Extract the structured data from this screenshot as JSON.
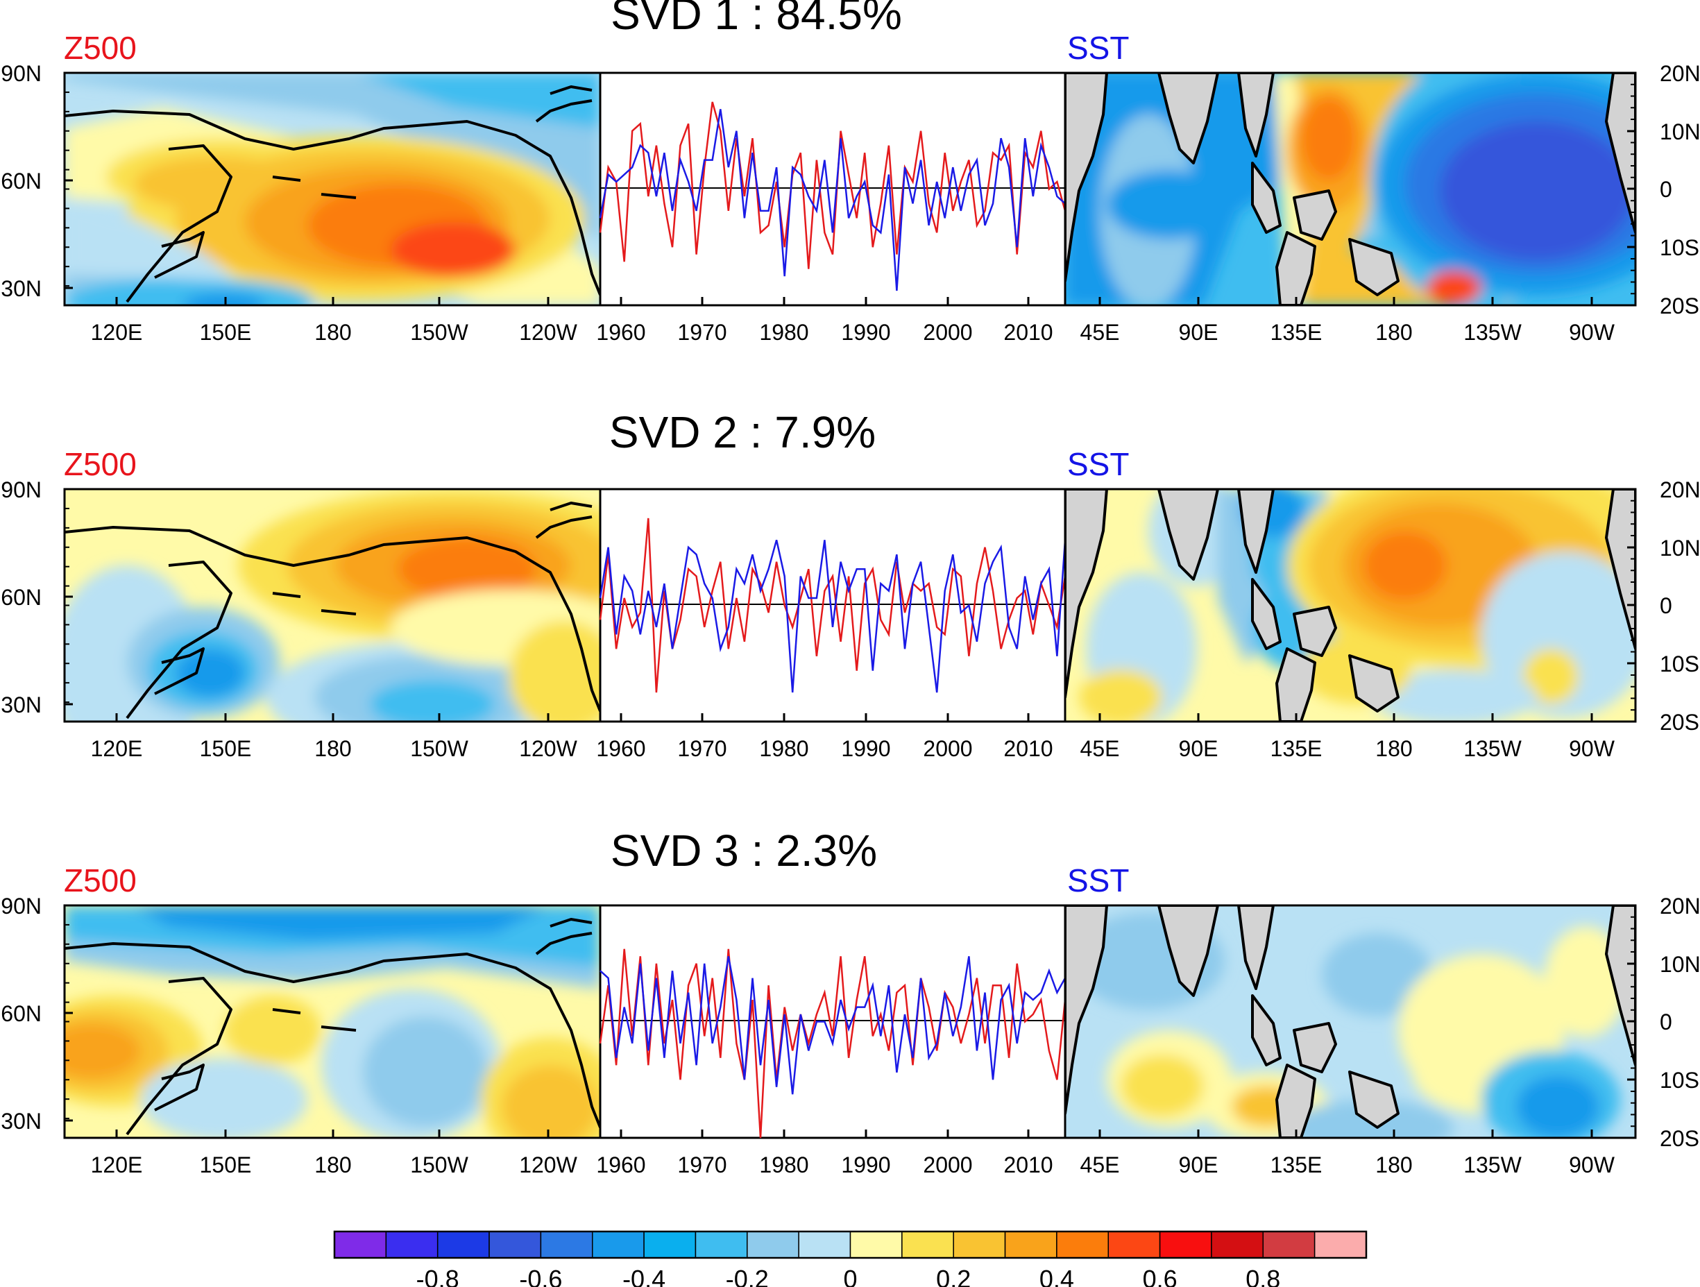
{
  "colors": {
    "z500_label": "#e8141c",
    "sst_label": "#1414e6",
    "z500_series": "#e41a1c",
    "sst_series": "#1a1ae6",
    "land": "#d3d3d3",
    "coast": "#000000",
    "colorbar": [
      "#7f2be8",
      "#3a2ef0",
      "#1c3ae6",
      "#3457db",
      "#2c79e4",
      "#199aeb",
      "#0aafee",
      "#3fbdf0",
      "#8fcbec",
      "#b9e1f4",
      "#fffaa8",
      "#fae150",
      "#f9c332",
      "#f9a31b",
      "#fb7d0c",
      "#fc4714",
      "#f80f0f",
      "#d40f12",
      "#d23c41",
      "#fbacac"
    ]
  },
  "panels": [
    {
      "id": "svd1",
      "title": "SVD 1 : 84.5%",
      "left_label": "Z500",
      "right_label": "SST",
      "left_lat_labels": [
        "90N",
        "60N",
        "30N"
      ],
      "left_lon_labels": [
        "120E",
        "150E",
        "180",
        "150W",
        "120W"
      ],
      "time_labels": [
        "1960",
        "1970",
        "1980",
        "1990",
        "2000",
        "2010"
      ],
      "right_lon_labels": [
        "45E",
        "90E",
        "135E",
        "180",
        "135W",
        "90W"
      ],
      "right_lat_labels": [
        "20N",
        "10N",
        "0",
        "10S",
        "20S"
      ]
    },
    {
      "id": "svd2",
      "title": "SVD 2 : 7.9%",
      "left_label": "Z500",
      "right_label": "SST",
      "left_lat_labels": [
        "90N",
        "60N",
        "30N"
      ],
      "left_lon_labels": [
        "120E",
        "150E",
        "180",
        "150W",
        "120W"
      ],
      "time_labels": [
        "1960",
        "1970",
        "1980",
        "1990",
        "2000",
        "2010"
      ],
      "right_lon_labels": [
        "45E",
        "90E",
        "135E",
        "180",
        "135W",
        "90W"
      ],
      "right_lat_labels": [
        "20N",
        "10N",
        "0",
        "10S",
        "20S"
      ]
    },
    {
      "id": "svd3",
      "title": "SVD 3 : 2.3%",
      "left_label": "Z500",
      "right_label": "SST",
      "left_lat_labels": [
        "90N",
        "60N",
        "30N"
      ],
      "left_lon_labels": [
        "120E",
        "150E",
        "180",
        "150W",
        "120W"
      ],
      "time_labels": [
        "1960",
        "1970",
        "1980",
        "1990",
        "2000",
        "2010"
      ],
      "right_lon_labels": [
        "45E",
        "90E",
        "135E",
        "180",
        "135W",
        "90W"
      ],
      "right_lat_labels": [
        "20N",
        "10N",
        "0",
        "10S",
        "20S"
      ]
    }
  ],
  "colorbar_labels": [
    "-0.8",
    "-0.6",
    "-0.4",
    "-0.2",
    "0",
    "0.2",
    "0.4",
    "0.6",
    "0.8"
  ],
  "chart_data": [
    {
      "type": "line",
      "panel": "SVD 1 : 84.5%",
      "x": [
        1958,
        1959,
        1960,
        1961,
        1962,
        1963,
        1964,
        1965,
        1966,
        1967,
        1968,
        1969,
        1970,
        1971,
        1972,
        1973,
        1974,
        1975,
        1976,
        1977,
        1978,
        1979,
        1980,
        1981,
        1982,
        1983,
        1984,
        1985,
        1986,
        1987,
        1988,
        1989,
        1990,
        1991,
        1992,
        1993,
        1994,
        1995,
        1996,
        1997,
        1998,
        1999,
        2000,
        2001,
        2002,
        2003,
        2004,
        2005,
        2006,
        2007,
        2008,
        2009,
        2010,
        2011,
        2012,
        2013,
        2014,
        2015,
        2016
      ],
      "xlim": [
        1958,
        2016
      ],
      "ylim": [
        -1.6,
        1.6
      ],
      "series": [
        {
          "values": [
            -0.6,
            0.3,
            0.1,
            -1.0,
            0.8,
            0.9,
            -0.1,
            0.6,
            -0.2,
            -0.8,
            0.6,
            0.9,
            -0.9,
            0.3,
            1.2,
            0.8,
            -0.3,
            0.7,
            -0.1,
            0.7,
            -0.6,
            -0.5,
            0.1,
            -0.8,
            0.2,
            0.5,
            -1.1,
            0.4,
            -0.6,
            -0.9,
            0.8,
            0.2,
            -0.4,
            0.5,
            -0.8,
            -0.2,
            0.6,
            -0.9,
            0.3,
            0.1,
            0.8,
            -0.2,
            -0.6,
            0.5,
            -0.3,
            0.1,
            0.4,
            -0.5,
            -0.3,
            0.5,
            0.4,
            0.6,
            -0.9,
            0.5,
            0.3,
            0.8,
            0.0,
            0.1,
            -0.3
          ]
        },
        {
          "values": [
            -0.4,
            0.2,
            0.1,
            0.2,
            0.3,
            0.6,
            0.5,
            -0.1,
            0.5,
            -0.3,
            0.4,
            0.1,
            -0.3,
            0.4,
            0.4,
            1.1,
            0.3,
            0.8,
            -0.4,
            0.5,
            -0.3,
            -0.3,
            0.3,
            -1.2,
            0.3,
            0.2,
            -0.1,
            -0.3,
            0.4,
            -0.6,
            0.7,
            -0.4,
            -0.1,
            0.1,
            -0.5,
            -0.6,
            0.2,
            -1.4,
            0.3,
            -0.2,
            0.4,
            -0.5,
            0.1,
            -0.4,
            0.3,
            -0.3,
            0.2,
            0.4,
            -0.5,
            -0.2,
            0.7,
            0.3,
            -0.8,
            0.7,
            -0.1,
            0.6,
            0.3,
            -0.1,
            -0.2
          ]
        }
      ]
    },
    {
      "type": "line",
      "panel": "SVD 2 : 7.9%",
      "x": [
        1958,
        1959,
        1960,
        1961,
        1962,
        1963,
        1964,
        1965,
        1966,
        1967,
        1968,
        1969,
        1970,
        1971,
        1972,
        1973,
        1974,
        1975,
        1976,
        1977,
        1978,
        1979,
        1980,
        1981,
        1982,
        1983,
        1984,
        1985,
        1986,
        1987,
        1988,
        1989,
        1990,
        1991,
        1992,
        1993,
        1994,
        1995,
        1996,
        1997,
        1998,
        1999,
        2000,
        2001,
        2002,
        2003,
        2004,
        2005,
        2006,
        2007,
        2008,
        2009,
        2010,
        2011,
        2012,
        2013,
        2014,
        2015,
        2016
      ],
      "xlim": [
        1958,
        2016
      ],
      "ylim": [
        -1.6,
        1.6
      ],
      "series": [
        {
          "values": [
            -0.2,
            0.7,
            -0.6,
            0.1,
            -0.3,
            -0.1,
            1.2,
            -1.2,
            0.2,
            -0.6,
            -0.2,
            0.5,
            0.4,
            -0.3,
            0.2,
            0.6,
            -0.6,
            0.1,
            -0.5,
            0.5,
            0.3,
            -0.1,
            0.6,
            0.0,
            -0.3,
            0.1,
            0.5,
            -0.7,
            0.2,
            0.4,
            -0.5,
            0.4,
            -0.9,
            0.3,
            0.5,
            -0.2,
            -0.4,
            0.6,
            -0.1,
            0.3,
            0.2,
            0.3,
            -0.3,
            -0.4,
            0.5,
            0.4,
            -0.7,
            0.3,
            0.8,
            0.2,
            -0.6,
            -0.2,
            0.1,
            0.2,
            -0.4,
            0.3,
            0.0,
            -0.3,
            0.4
          ]
        },
        {
          "values": [
            0.1,
            0.8,
            -0.4,
            0.4,
            0.2,
            -0.4,
            0.2,
            -0.3,
            0.3,
            -0.6,
            0.1,
            0.8,
            0.7,
            0.3,
            0.1,
            -0.6,
            -0.3,
            0.5,
            0.3,
            0.7,
            0.2,
            0.5,
            0.9,
            0.4,
            -1.2,
            0.4,
            0.1,
            0.1,
            0.9,
            -0.3,
            0.6,
            0.2,
            0.5,
            0.5,
            -0.9,
            0.3,
            0.2,
            0.7,
            -0.6,
            0.3,
            0.6,
            -0.3,
            -1.2,
            0.2,
            0.7,
            -0.1,
            0.0,
            -0.5,
            0.3,
            0.6,
            0.8,
            -0.3,
            -0.6,
            0.4,
            -0.2,
            0.3,
            0.5,
            -0.7,
            0.9
          ]
        }
      ]
    },
    {
      "type": "line",
      "panel": "SVD 3 : 2.3%",
      "x": [
        1958,
        1959,
        1960,
        1961,
        1962,
        1963,
        1964,
        1965,
        1966,
        1967,
        1968,
        1969,
        1970,
        1971,
        1972,
        1973,
        1974,
        1975,
        1976,
        1977,
        1978,
        1979,
        1980,
        1981,
        1982,
        1983,
        1984,
        1985,
        1986,
        1987,
        1988,
        1989,
        1990,
        1991,
        1992,
        1993,
        1994,
        1995,
        1996,
        1997,
        1998,
        1999,
        2000,
        2001,
        2002,
        2003,
        2004,
        2005,
        2006,
        2007,
        2008,
        2009,
        2010,
        2011,
        2012,
        2013,
        2014,
        2015,
        2016
      ],
      "xlim": [
        1958,
        2016
      ],
      "ylim": [
        -1.6,
        1.6
      ],
      "series": [
        {
          "values": [
            -0.3,
            0.5,
            -0.6,
            1.0,
            -0.2,
            0.9,
            -0.6,
            0.8,
            -0.3,
            0.3,
            -0.8,
            0.5,
            0.8,
            -0.2,
            0.6,
            -0.5,
            1.0,
            -0.3,
            -0.8,
            0.3,
            -1.6,
            0.5,
            -0.8,
            0.2,
            -0.4,
            0.1,
            -0.3,
            0.1,
            0.4,
            -0.2,
            0.9,
            -0.5,
            0.3,
            0.9,
            -0.2,
            0.1,
            -0.4,
            0.4,
            0.5,
            -0.6,
            0.6,
            0.2,
            -0.4,
            0.4,
            0.2,
            -0.3,
            0.1,
            0.6,
            -0.3,
            0.5,
            0.5,
            -0.5,
            0.8,
            0.0,
            0.1,
            0.3,
            -0.4,
            -0.8,
            0.3
          ]
        },
        {
          "values": [
            0.7,
            0.6,
            -0.5,
            0.2,
            -0.3,
            0.8,
            -0.4,
            0.6,
            -0.5,
            0.7,
            -0.3,
            0.4,
            -0.6,
            0.8,
            -0.3,
            0.2,
            0.9,
            0.3,
            -0.8,
            0.6,
            -0.6,
            0.3,
            -0.9,
            0.1,
            -1.0,
            0.1,
            -0.4,
            0.0,
            0.0,
            -0.3,
            0.3,
            -0.1,
            0.2,
            0.2,
            0.5,
            -0.2,
            0.5,
            -0.7,
            0.1,
            -0.5,
            0.6,
            -0.5,
            -0.3,
            0.4,
            -0.2,
            0.2,
            0.9,
            -0.4,
            0.4,
            -0.8,
            0.3,
            0.5,
            -0.3,
            0.4,
            0.3,
            0.4,
            0.7,
            0.4,
            0.6
          ]
        }
      ]
    }
  ]
}
